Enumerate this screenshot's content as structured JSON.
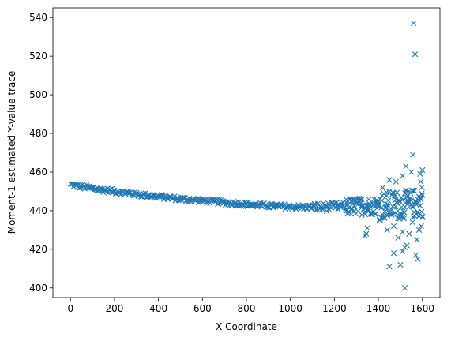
{
  "chart_data": {
    "type": "scatter",
    "title": "",
    "xlabel": "X Coordinate",
    "ylabel": "Moment-1 estimated Y-value trace",
    "xlim": [
      -80,
      1680
    ],
    "ylim": [
      395,
      545
    ],
    "xticks": [
      0,
      200,
      400,
      600,
      800,
      1000,
      1200,
      1400,
      1600
    ],
    "yticks": [
      400,
      420,
      440,
      460,
      480,
      500,
      520,
      540
    ],
    "grid": false,
    "marker": "x",
    "color": "#1f77b4",
    "trend": {
      "x": [
        0,
        100,
        200,
        300,
        400,
        500,
        600,
        700,
        800,
        900,
        1000,
        1100,
        1200,
        1300,
        1400,
        1500,
        1600
      ],
      "y": [
        453.5,
        451.5,
        450.0,
        448.5,
        447.3,
        446.1,
        445.2,
        444.2,
        443.3,
        442.5,
        442.0,
        441.8,
        442.0,
        442.2,
        442.5,
        443.0,
        444.0
      ]
    },
    "outliers": [
      {
        "x": 1560,
        "y": 537
      },
      {
        "x": 1567,
        "y": 521
      },
      {
        "x": 1557,
        "y": 469
      },
      {
        "x": 1525,
        "y": 463
      },
      {
        "x": 1600,
        "y": 461
      },
      {
        "x": 1590,
        "y": 459
      },
      {
        "x": 1510,
        "y": 458
      },
      {
        "x": 1550,
        "y": 460
      },
      {
        "x": 1480,
        "y": 455
      },
      {
        "x": 1450,
        "y": 456
      },
      {
        "x": 1420,
        "y": 452
      },
      {
        "x": 1595,
        "y": 432
      },
      {
        "x": 1585,
        "y": 430
      },
      {
        "x": 1540,
        "y": 428
      },
      {
        "x": 1510,
        "y": 429
      },
      {
        "x": 1440,
        "y": 430
      },
      {
        "x": 1470,
        "y": 432
      },
      {
        "x": 1350,
        "y": 431
      },
      {
        "x": 1345,
        "y": 428
      },
      {
        "x": 1340,
        "y": 427
      },
      {
        "x": 1530,
        "y": 422
      },
      {
        "x": 1520,
        "y": 421
      },
      {
        "x": 1510,
        "y": 419
      },
      {
        "x": 1470,
        "y": 418
      },
      {
        "x": 1570,
        "y": 417
      },
      {
        "x": 1580,
        "y": 415
      },
      {
        "x": 1500,
        "y": 412
      },
      {
        "x": 1450,
        "y": 411
      },
      {
        "x": 1520,
        "y": 400
      },
      {
        "x": 1575,
        "y": 425
      },
      {
        "x": 1490,
        "y": 426
      },
      {
        "x": 1555,
        "y": 434
      },
      {
        "x": 1600,
        "y": 448
      },
      {
        "x": 1598,
        "y": 452
      },
      {
        "x": 1593,
        "y": 455
      }
    ]
  }
}
